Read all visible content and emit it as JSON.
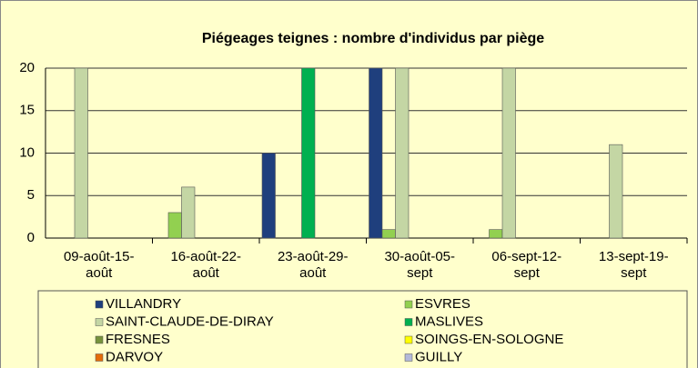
{
  "chart_data": {
    "type": "bar",
    "title": "Piégeages teignes : nombre d'individus par piège",
    "categories": [
      "09-août-15-août",
      "16-août-22-août",
      "23-août-29-août",
      "30-août-05-sept",
      "06-sept-12-sept",
      "13-sept-19-sept"
    ],
    "series": [
      {
        "name": "VILLANDRY",
        "color": "#1f3f7d",
        "values": [
          0,
          0,
          10,
          20,
          0,
          0
        ]
      },
      {
        "name": "ESVRES",
        "color": "#92d050",
        "values": [
          0,
          3,
          0,
          1,
          1,
          0
        ]
      },
      {
        "name": "SAINT-CLAUDE-DE-DIRAY",
        "color": "#c4d6a4",
        "values": [
          20,
          6,
          0,
          20,
          20,
          11
        ]
      },
      {
        "name": "MASLIVES",
        "color": "#00b050",
        "values": [
          0,
          0,
          20,
          0,
          0,
          0
        ]
      },
      {
        "name": "FRESNES",
        "color": "#77933c",
        "values": [
          0,
          0,
          0,
          0,
          0,
          0
        ]
      },
      {
        "name": "SOINGS-EN-SOLOGNE",
        "color": "#ffff00",
        "values": [
          0,
          0,
          0,
          0,
          0,
          0
        ]
      },
      {
        "name": "DARVOY",
        "color": "#e46c0a",
        "values": [
          0,
          0,
          0,
          0,
          0,
          0
        ]
      },
      {
        "name": "GUILLY",
        "color": "#b3b9d9",
        "values": [
          0,
          0,
          0,
          0,
          0,
          0
        ]
      }
    ],
    "ylim": [
      0,
      20
    ],
    "yticks": [
      0,
      5,
      10,
      15,
      20
    ],
    "grid": true,
    "legend": "bottom"
  }
}
